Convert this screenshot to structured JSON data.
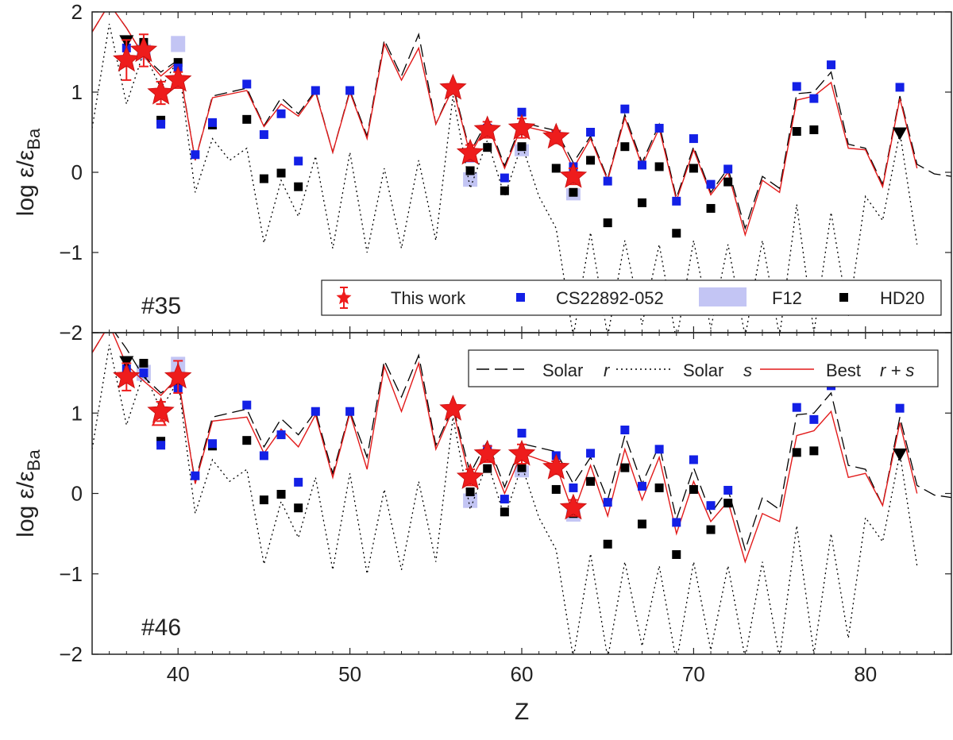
{
  "chart_data": {
    "type": "line",
    "xlabel": "Z",
    "ylabel": "log ε/ε_Ba",
    "ylabel_main": "log ε/ε",
    "ylabel_sub": "Ba",
    "xlim": [
      35,
      85
    ],
    "ylim": [
      -2,
      2
    ],
    "xticks": [
      40,
      50,
      60,
      70,
      80
    ],
    "yticks": [
      -2,
      -1,
      0,
      1,
      2
    ],
    "ytick_labels": [
      "−2",
      "−1",
      "0",
      "1",
      "2"
    ],
    "shared_x": true,
    "colors": {
      "this_work": "#ee1c1c",
      "cs22892": "#1320e6",
      "f12": "#c3c5f4",
      "hd20": "#000000",
      "solar_r": "#000000",
      "solar_s": "#000000",
      "best": "#e21a1a"
    },
    "series_common": {
      "solar_r": {
        "name": "Solar r",
        "x": [
          35,
          36,
          37,
          38,
          39,
          40,
          41,
          42,
          44,
          45,
          46,
          47,
          48,
          49,
          50,
          51,
          52,
          53,
          54,
          55,
          56,
          57,
          58,
          59,
          60,
          62,
          63,
          64,
          65,
          66,
          67,
          68,
          69,
          70,
          71,
          72,
          73,
          74,
          75,
          76,
          77,
          78,
          79,
          80,
          81,
          82,
          83,
          84,
          85
        ],
        "y": [
          1.75,
          2.1,
          1.8,
          1.45,
          1.25,
          1.4,
          0.15,
          0.95,
          1.05,
          0.58,
          0.93,
          0.73,
          1.02,
          0.25,
          1.02,
          0.45,
          1.65,
          1.2,
          1.72,
          0.6,
          1.08,
          0.25,
          0.65,
          0.08,
          0.62,
          0.52,
          0.12,
          0.45,
          -0.08,
          0.72,
          0.12,
          0.6,
          -0.32,
          0.32,
          -0.25,
          0.05,
          -0.7,
          -0.05,
          -0.2,
          0.98,
          1.0,
          1.25,
          0.35,
          0.3,
          -0.15,
          0.95,
          0.1,
          -0.02,
          -0.05
        ]
      },
      "solar_s": {
        "name": "Solar s",
        "x": [
          35,
          36,
          37,
          38,
          39,
          40,
          41,
          42,
          43,
          44,
          45,
          46,
          47,
          48,
          49,
          50,
          51,
          52,
          53,
          54,
          55,
          56,
          57,
          58,
          59,
          60,
          61,
          62,
          63,
          64,
          65,
          66,
          67,
          68,
          69,
          70,
          71,
          72,
          73,
          74,
          75,
          76,
          77,
          78,
          79,
          80,
          81,
          82,
          83
        ],
        "y": [
          0.55,
          1.85,
          0.85,
          1.5,
          1.05,
          1.4,
          -0.25,
          0.42,
          0.15,
          0.3,
          -0.88,
          -0.1,
          -0.55,
          0.2,
          -0.95,
          0.25,
          -1.0,
          0.05,
          -0.95,
          0.15,
          -0.85,
          0.95,
          -0.2,
          0.4,
          -0.3,
          0.35,
          -0.3,
          -0.7,
          -2.05,
          -0.75,
          -2.05,
          -0.85,
          -1.9,
          -0.9,
          -2.1,
          -0.85,
          -1.95,
          -0.9,
          -2.05,
          -0.85,
          -2.05,
          -0.4,
          -2.0,
          -0.5,
          -1.8,
          -0.3,
          -0.6,
          0.5,
          -0.9
        ]
      },
      "cs22892": {
        "name": "CS22892-052",
        "x": [
          37,
          38,
          39,
          40,
          41,
          42,
          44,
          45,
          46,
          47,
          48,
          50,
          56,
          57,
          58,
          59,
          60,
          62,
          63,
          64,
          65,
          66,
          67,
          68,
          69,
          70,
          71,
          72,
          76,
          77,
          78,
          82
        ],
        "y": [
          1.55,
          1.5,
          0.6,
          1.3,
          0.22,
          0.62,
          1.1,
          0.47,
          0.73,
          0.14,
          1.02,
          1.02,
          1.04,
          0.18,
          0.55,
          -0.07,
          0.75,
          0.47,
          0.07,
          0.5,
          -0.11,
          0.79,
          0.09,
          0.55,
          -0.36,
          0.42,
          -0.15,
          0.04,
          1.07,
          0.92,
          1.34,
          1.06
        ]
      },
      "f12": {
        "name": "F12",
        "points": [
          {
            "x": 38,
            "lo": 1.4,
            "hi": 1.6
          },
          {
            "x": 40,
            "lo": 1.5,
            "hi": 1.7
          },
          {
            "x": 57,
            "lo": -0.18,
            "hi": 0.0
          },
          {
            "x": 60,
            "lo": 0.2,
            "hi": 0.35
          },
          {
            "x": 63,
            "lo": -0.35,
            "hi": -0.2
          }
        ]
      },
      "hd20": {
        "name": "HD20",
        "x": [
          38,
          39,
          40,
          42,
          44,
          45,
          46,
          47,
          56,
          57,
          58,
          59,
          60,
          62,
          63,
          64,
          65,
          66,
          67,
          68,
          69,
          70,
          71,
          72,
          76,
          77
        ],
        "y": [
          1.62,
          0.65,
          1.37,
          0.59,
          0.66,
          -0.08,
          -0.01,
          -0.18,
          1.03,
          0.02,
          0.31,
          -0.23,
          0.32,
          0.05,
          -0.25,
          0.15,
          -0.63,
          0.32,
          -0.38,
          0.07,
          -0.76,
          0.05,
          -0.45,
          -0.12,
          0.51,
          0.53
        ]
      },
      "hd20_upper_limits": {
        "x": [
          37,
          82
        ],
        "y": [
          1.63,
          0.48
        ]
      }
    },
    "panels": [
      {
        "label": "#35",
        "legend": {
          "location": "bottom-right",
          "entries": [
            {
              "label": "This work",
              "marker": "star-errorbar"
            },
            {
              "label": "CS22892-052",
              "marker": "blue-square"
            },
            {
              "label": "F12",
              "marker": "lavender-band"
            },
            {
              "label": "HD20",
              "marker": "black-square"
            }
          ]
        },
        "this_work": [
          {
            "x": 37,
            "y": 1.4,
            "err": 0.25
          },
          {
            "x": 38,
            "y": 1.52,
            "err": 0.2
          },
          {
            "x": 39,
            "y": 0.99,
            "err": 0.14
          },
          {
            "x": 40,
            "y": 1.15,
            "err": 0.1
          },
          {
            "x": 56,
            "y": 1.05,
            "err": 0
          },
          {
            "x": 57,
            "y": 0.24,
            "err": 0.1
          },
          {
            "x": 58,
            "y": 0.53,
            "err": 0.1
          },
          {
            "x": 60,
            "y": 0.55,
            "err": 0.12
          },
          {
            "x": 62,
            "y": 0.44,
            "err": 0.08
          },
          {
            "x": 63,
            "y": -0.05,
            "err": 0.1
          }
        ],
        "this_work_limits": [],
        "best": {
          "name": "Best r + s",
          "x": [
            35,
            36,
            37,
            38,
            39,
            40,
            41,
            42,
            44,
            45,
            46,
            47,
            48,
            49,
            50,
            51,
            52,
            53,
            54,
            55,
            56,
            57,
            58,
            59,
            60,
            62,
            63,
            64,
            65,
            66,
            67,
            68,
            69,
            70,
            71,
            72,
            73,
            74,
            75,
            76,
            77,
            78,
            79,
            80,
            81,
            82,
            83
          ],
          "y": [
            1.75,
            2.1,
            1.8,
            1.45,
            1.2,
            1.38,
            0.15,
            0.93,
            1.02,
            0.57,
            0.85,
            0.7,
            1.0,
            0.25,
            1.0,
            0.42,
            1.6,
            1.15,
            1.55,
            0.6,
            1.05,
            0.22,
            0.6,
            0.05,
            0.58,
            0.48,
            0.05,
            0.42,
            -0.1,
            0.68,
            0.08,
            0.55,
            -0.35,
            0.28,
            -0.28,
            0.0,
            -0.78,
            -0.1,
            -0.25,
            0.9,
            0.95,
            1.12,
            0.3,
            0.28,
            -0.18,
            0.92,
            0.05
          ]
        }
      },
      {
        "label": "#46",
        "legend": {
          "location": "top-right",
          "entries": [
            {
              "label": "Solar",
              "tag": "r",
              "line": "dashed"
            },
            {
              "label": "Solar",
              "tag": "s",
              "line": "dotted"
            },
            {
              "label": "Best",
              "tag": "r + s",
              "line": "solid-red"
            }
          ]
        },
        "this_work": [
          {
            "x": 37,
            "y": 1.45,
            "err": 0.17
          },
          {
            "x": 39,
            "y": 1.02,
            "err": 0.12
          },
          {
            "x": 40,
            "y": 1.45,
            "err": 0.2
          },
          {
            "x": 56,
            "y": 1.05,
            "err": 0
          },
          {
            "x": 57,
            "y": 0.2,
            "err": 0.1
          },
          {
            "x": 58,
            "y": 0.49,
            "err": 0.1
          },
          {
            "x": 60,
            "y": 0.49,
            "err": 0.12
          },
          {
            "x": 62,
            "y": 0.32,
            "err": 0.08
          },
          {
            "x": 63,
            "y": -0.18,
            "err": 0.1
          }
        ],
        "this_work_limits": [
          {
            "x": 38.9,
            "y": 0.92
          }
        ],
        "best": {
          "name": "Best r + s",
          "x": [
            35,
            36,
            37,
            38,
            39,
            40,
            41,
            42,
            44,
            45,
            46,
            47,
            48,
            49,
            50,
            51,
            52,
            53,
            54,
            55,
            56,
            57,
            58,
            59,
            60,
            62,
            63,
            64,
            65,
            66,
            67,
            68,
            69,
            70,
            71,
            72,
            73,
            74,
            75,
            76,
            77,
            78,
            79,
            80,
            81,
            82,
            83
          ],
          "y": [
            1.75,
            2.1,
            1.6,
            1.4,
            1.22,
            1.45,
            0.12,
            0.9,
            0.95,
            0.5,
            0.8,
            0.58,
            0.98,
            0.2,
            1.0,
            0.3,
            1.58,
            1.02,
            1.62,
            0.55,
            1.05,
            0.15,
            0.55,
            0.0,
            0.5,
            0.35,
            -0.25,
            0.35,
            -0.28,
            0.55,
            -0.08,
            0.45,
            -0.5,
            0.15,
            -0.35,
            -0.1,
            -0.85,
            -0.25,
            -0.35,
            0.72,
            0.78,
            1.02,
            0.2,
            0.25,
            -0.15,
            0.88,
            0.0
          ]
        }
      }
    ]
  }
}
